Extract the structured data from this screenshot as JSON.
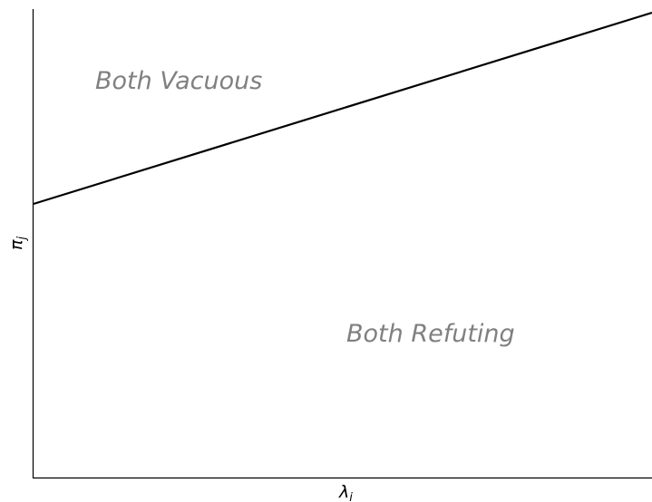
{
  "figure": {
    "regions": [
      {
        "label": "Both Vacuous"
      },
      {
        "label": "Both Refuting"
      }
    ],
    "x_axis": {
      "symbol": "λ",
      "subscript": "i"
    },
    "y_axis": {
      "symbol": "π",
      "subscript": "j"
    }
  },
  "chart_data": {
    "type": "line",
    "title": "",
    "xlabel": "λi",
    "ylabel": "πj",
    "ticks": "none",
    "colors": {
      "boundary": "#000000",
      "region_text": "#808080",
      "axes": "#000000"
    }
  }
}
